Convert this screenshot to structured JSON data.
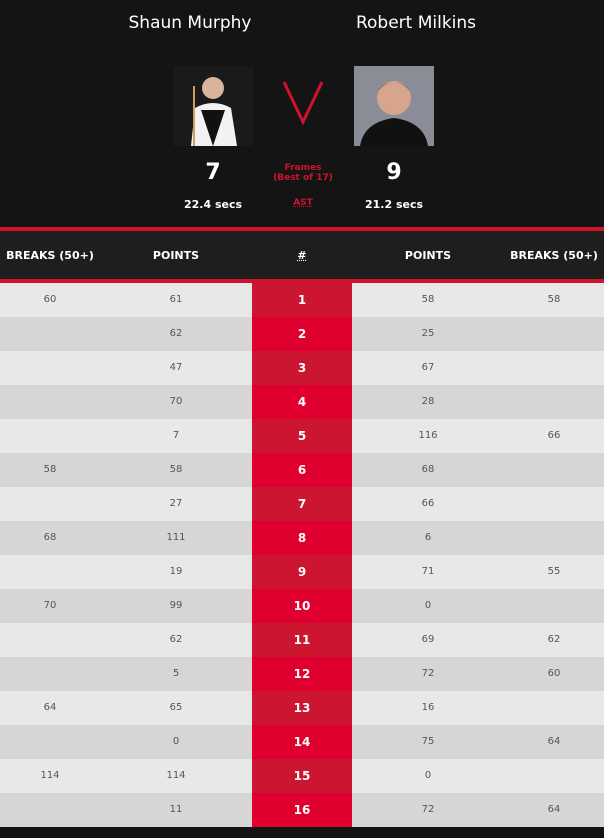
{
  "player1": {
    "name": "Shaun Murphy",
    "frames": "7",
    "avg_shot_time": "22.4 secs"
  },
  "player2": {
    "name": "Robert Milkins",
    "frames": "9",
    "avg_shot_time": "21.2 secs"
  },
  "versus": "V",
  "frames_label": "Frames",
  "best_of_label": "(Best of 17)",
  "ast_label": "AST",
  "colors": {
    "accent": "#d0122d",
    "background": "#141414"
  },
  "table": {
    "headers": [
      "BREAKS (50+)",
      "POINTS",
      "#",
      "POINTS",
      "BREAKS (50+)"
    ],
    "rows": [
      {
        "b1": "60",
        "p1": "61",
        "n": "1",
        "p2": "58",
        "b2": "58"
      },
      {
        "b1": "",
        "p1": "62",
        "n": "2",
        "p2": "25",
        "b2": ""
      },
      {
        "b1": "",
        "p1": "47",
        "n": "3",
        "p2": "67",
        "b2": ""
      },
      {
        "b1": "",
        "p1": "70",
        "n": "4",
        "p2": "28",
        "b2": ""
      },
      {
        "b1": "",
        "p1": "7",
        "n": "5",
        "p2": "116",
        "b2": "66"
      },
      {
        "b1": "58",
        "p1": "58",
        "n": "6",
        "p2": "68",
        "b2": ""
      },
      {
        "b1": "",
        "p1": "27",
        "n": "7",
        "p2": "66",
        "b2": ""
      },
      {
        "b1": "68",
        "p1": "111",
        "n": "8",
        "p2": "6",
        "b2": ""
      },
      {
        "b1": "",
        "p1": "19",
        "n": "9",
        "p2": "71",
        "b2": "55"
      },
      {
        "b1": "70",
        "p1": "99",
        "n": "10",
        "p2": "0",
        "b2": ""
      },
      {
        "b1": "",
        "p1": "62",
        "n": "11",
        "p2": "69",
        "b2": "62"
      },
      {
        "b1": "",
        "p1": "5",
        "n": "12",
        "p2": "72",
        "b2": "60"
      },
      {
        "b1": "64",
        "p1": "65",
        "n": "13",
        "p2": "16",
        "b2": ""
      },
      {
        "b1": "",
        "p1": "0",
        "n": "14",
        "p2": "75",
        "b2": "64"
      },
      {
        "b1": "114",
        "p1": "114",
        "n": "15",
        "p2": "0",
        "b2": ""
      },
      {
        "b1": "",
        "p1": "11",
        "n": "16",
        "p2": "72",
        "b2": "64"
      }
    ]
  }
}
